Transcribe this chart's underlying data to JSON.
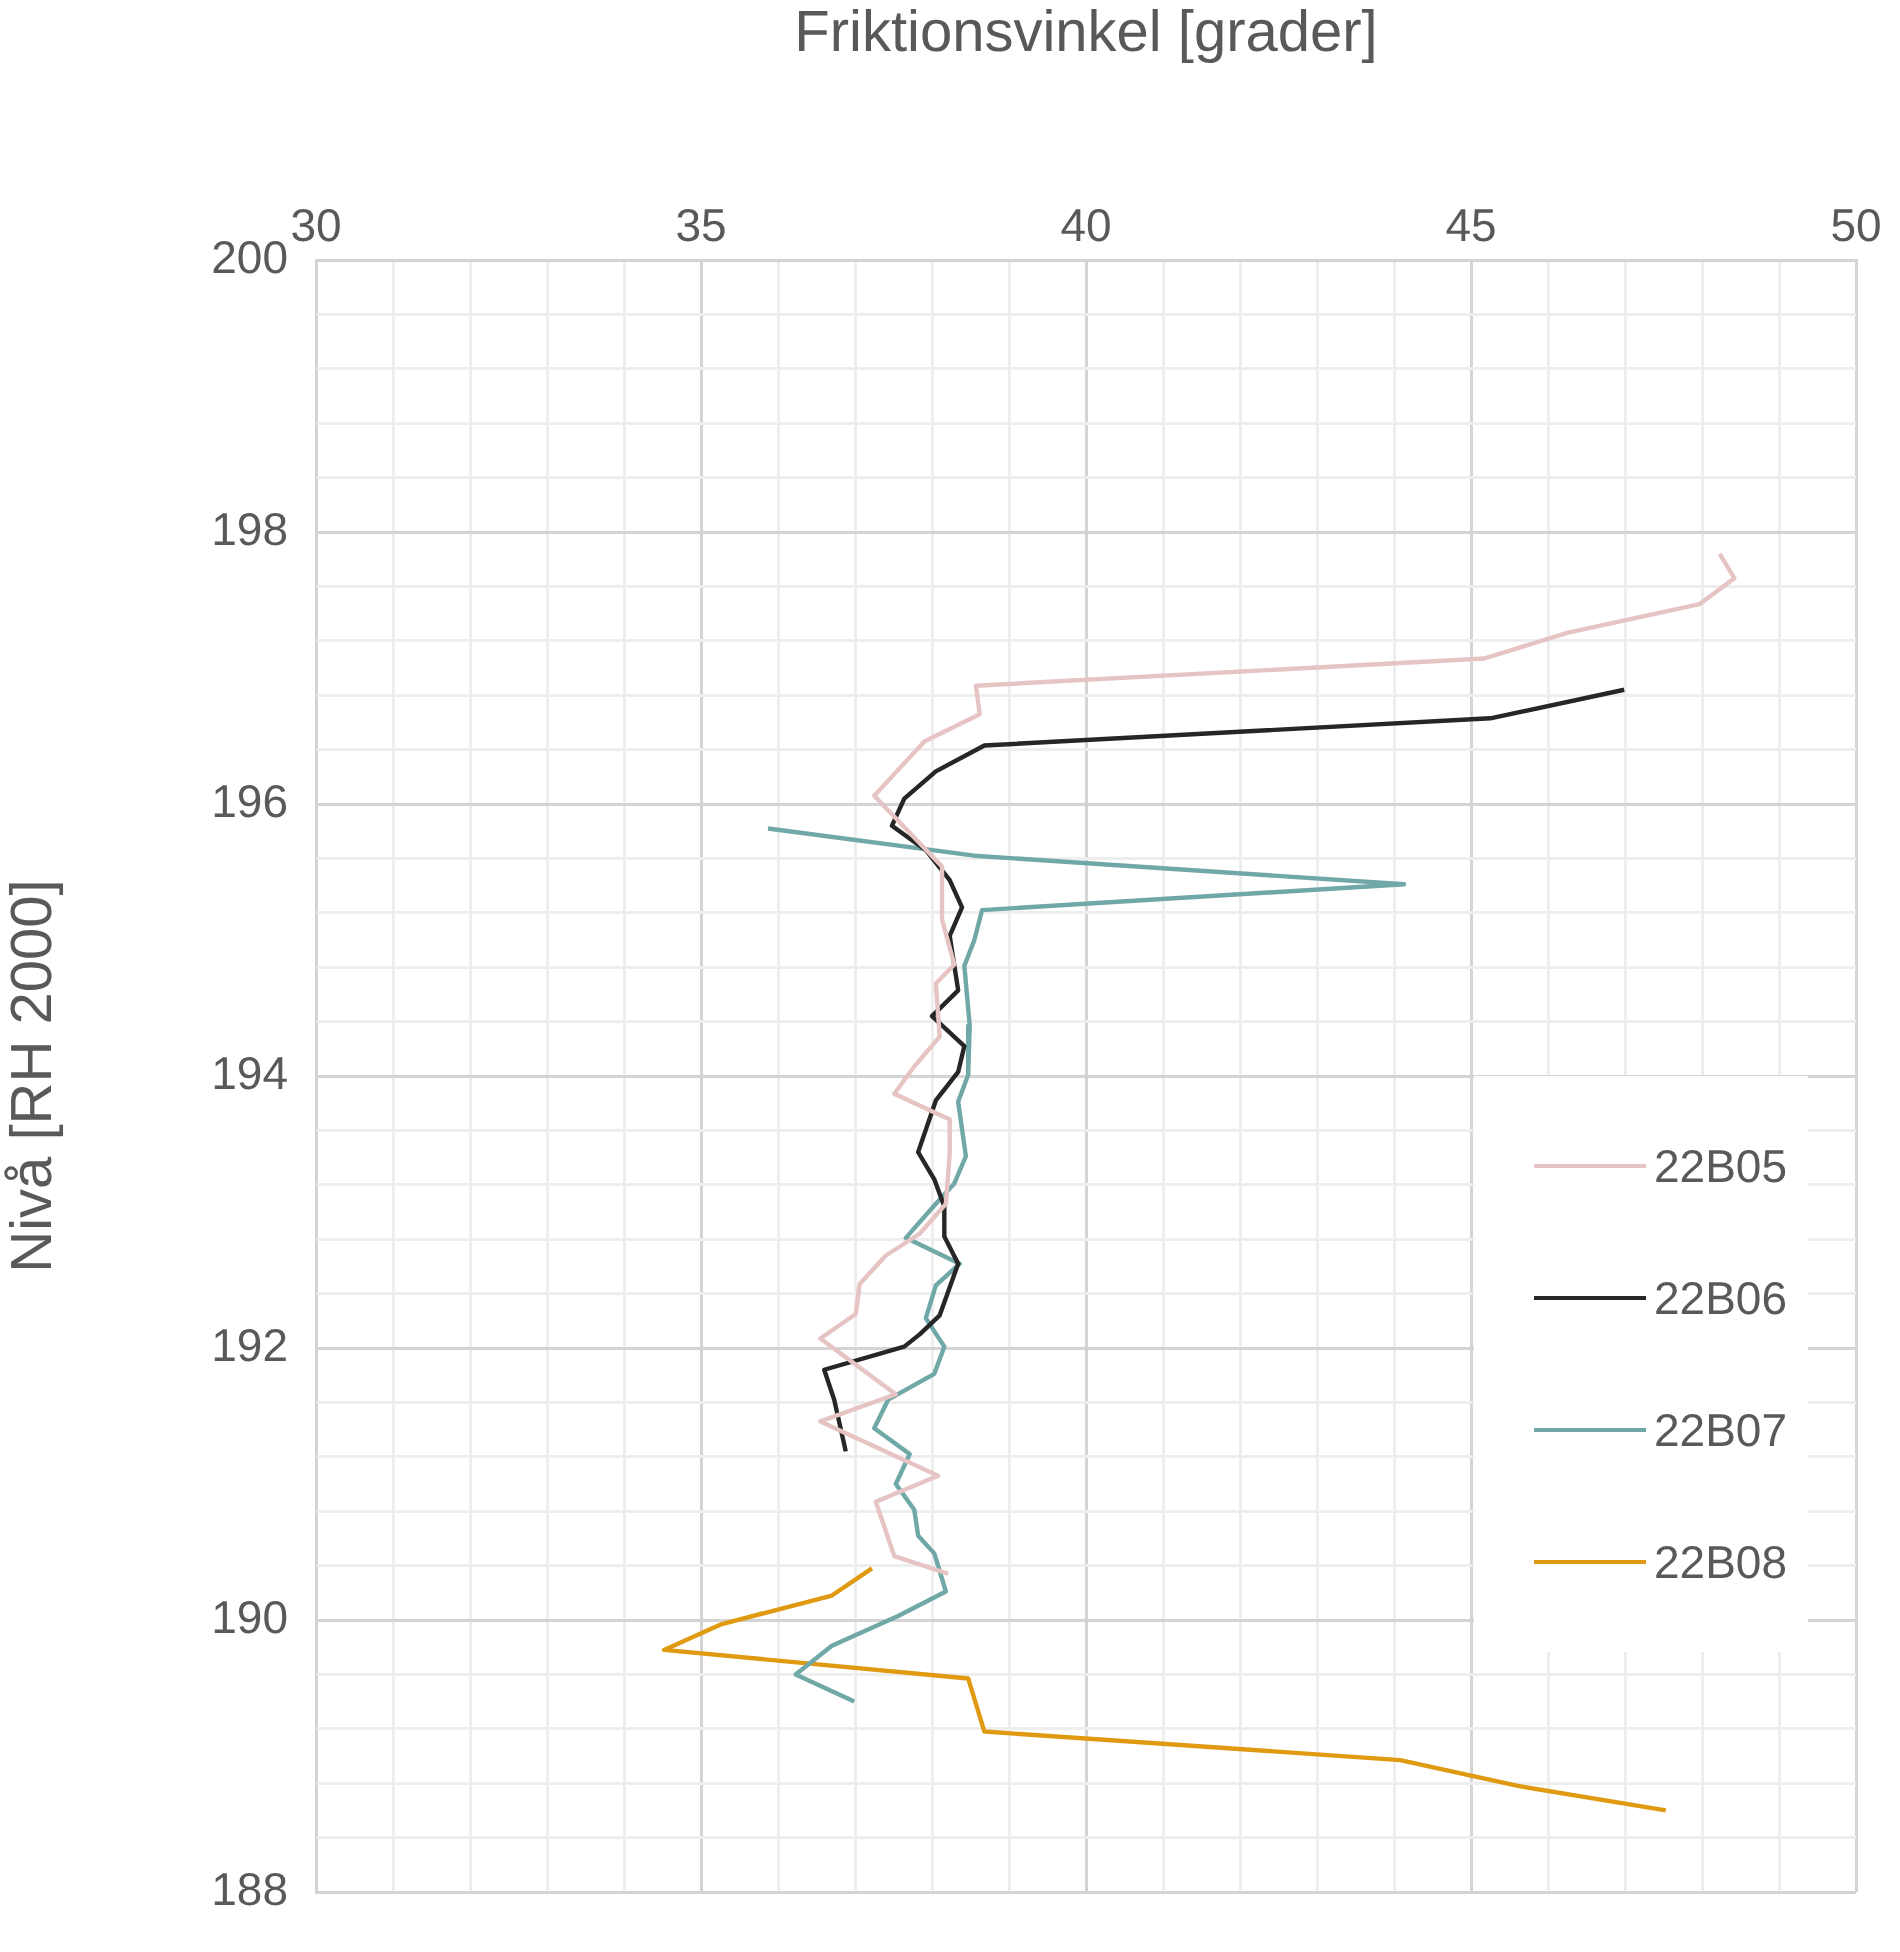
{
  "chart_data": {
    "type": "line",
    "xlabel": "Friktionsvinkel [grader]",
    "ylabel": "Nivå [RH 2000]",
    "xlim": [
      30,
      50
    ],
    "xticks": [
      30,
      {
        "value": 31,
        "label": null
      },
      {
        "value": 32,
        "label": null
      },
      {
        "value": 33,
        "label": null
      },
      {
        "value": 34,
        "label": null
      },
      35,
      {
        "value": 36,
        "label": null
      },
      {
        "value": 37,
        "label": null
      },
      {
        "value": 38,
        "label": null
      },
      {
        "value": 39,
        "label": null
      },
      40,
      {
        "value": 41,
        "label": null
      },
      {
        "value": 42,
        "label": null
      },
      {
        "value": 43,
        "label": null
      },
      {
        "value": 44,
        "label": null
      },
      45,
      {
        "value": 46,
        "label": null
      },
      {
        "value": 47,
        "label": null
      },
      {
        "value": 48,
        "label": null
      },
      {
        "value": 49,
        "label": null
      },
      50
    ],
    "ylim": [
      188,
      200
    ],
    "yticks": [
      188,
      {
        "value": 188.4,
        "label": null
      },
      {
        "value": 188.8,
        "label": null
      },
      {
        "value": 189.2,
        "label": null
      },
      {
        "value": 189.6,
        "label": null
      },
      190,
      {
        "value": 190.4,
        "label": null
      },
      {
        "value": 190.8,
        "label": null
      },
      {
        "value": 191.2,
        "label": null
      },
      {
        "value": 191.6,
        "label": null
      },
      192,
      {
        "value": 192.4,
        "label": null
      },
      {
        "value": 192.8,
        "label": null
      },
      {
        "value": 193.2,
        "label": null
      },
      {
        "value": 193.6,
        "label": null
      },
      194,
      {
        "value": 194.4,
        "label": null
      },
      {
        "value": 194.8,
        "label": null
      },
      {
        "value": 195.2,
        "label": null
      },
      {
        "value": 195.6,
        "label": null
      },
      196,
      {
        "value": 196.4,
        "label": null
      },
      {
        "value": 196.8,
        "label": null
      },
      {
        "value": 197.2,
        "label": null
      },
      {
        "value": 197.6,
        "label": null
      },
      198,
      {
        "value": 198.4,
        "label": null
      },
      {
        "value": 198.8,
        "label": null
      },
      {
        "value": 199.2,
        "label": null
      },
      {
        "value": 199.6,
        "label": null
      },
      200
    ],
    "grid": true,
    "legend": "right",
    "marker": "none",
    "line_style": "solid",
    "series": [
      {
        "name": "22B05",
        "color": "#e6c4c4",
        "x": [
          48.23,
          48.42,
          47.97,
          46.26,
          45.17,
          38.57,
          38.62,
          37.9,
          37.25,
          38.13,
          38.13,
          38.29,
          38.05,
          38.1,
          37.77,
          37.51,
          38.23,
          38.23,
          38.18,
          37.84,
          37.4,
          37.06,
          37.01,
          36.55,
          37.53,
          36.55,
          38.08,
          37.27,
          37.51,
          38.21
        ],
        "values": [
          197.84,
          197.66,
          197.47,
          197.26,
          197.07,
          196.87,
          196.66,
          196.46,
          196.06,
          195.54,
          195.15,
          194.82,
          194.68,
          194.29,
          194.07,
          193.87,
          193.68,
          193.43,
          193.06,
          192.84,
          192.68,
          192.47,
          192.25,
          192.07,
          191.66,
          191.46,
          191.06,
          190.87,
          190.47,
          190.34
        ]
      },
      {
        "name": "22B06",
        "color": "#262626",
        "x": [
          46.99,
          45.25,
          38.68,
          38.05,
          37.64,
          37.48,
          37.92,
          38.23,
          38.39,
          38.23,
          38.34,
          38.0,
          38.42,
          38.34,
          38.05,
          37.82,
          38.03,
          38.16,
          38.16,
          38.34,
          38.1,
          37.84,
          37.64,
          36.6,
          36.73,
          36.88
        ],
        "values": [
          196.84,
          196.63,
          196.43,
          196.24,
          196.04,
          195.84,
          195.66,
          195.44,
          195.24,
          195.03,
          194.63,
          194.44,
          194.22,
          194.03,
          193.82,
          193.44,
          193.24,
          193.04,
          192.82,
          192.62,
          192.24,
          192.1,
          192.01,
          191.84,
          191.62,
          191.24
        ]
      },
      {
        "name": "22B07",
        "color": "#6fa8a6",
        "x": [
          35.87,
          38.55,
          44.13,
          38.65,
          38.55,
          38.42,
          38.49,
          38.47,
          38.34,
          38.44,
          38.29,
          38.05,
          37.66,
          38.36,
          38.05,
          37.92,
          38.16,
          38.03,
          37.43,
          37.25,
          37.71,
          37.53,
          37.77,
          37.82,
          38.03,
          38.18,
          37.56,
          36.7,
          36.23,
          36.99
        ],
        "values": [
          195.82,
          195.62,
          195.41,
          195.22,
          195.0,
          194.81,
          194.37,
          194.01,
          193.81,
          193.41,
          193.21,
          193.06,
          192.81,
          192.62,
          192.46,
          192.22,
          192.01,
          191.81,
          191.62,
          191.41,
          191.22,
          191.0,
          190.81,
          190.62,
          190.49,
          190.21,
          190.03,
          189.81,
          189.6,
          189.4
        ]
      },
      {
        "name": "22B08",
        "color": "#e09a12",
        "x": [
          37.22,
          36.7,
          35.27,
          34.52,
          38.47,
          38.68,
          44.08,
          45.61,
          47.53
        ],
        "values": [
          190.38,
          190.18,
          189.97,
          189.78,
          189.57,
          189.18,
          188.97,
          188.78,
          188.6
        ]
      }
    ]
  }
}
